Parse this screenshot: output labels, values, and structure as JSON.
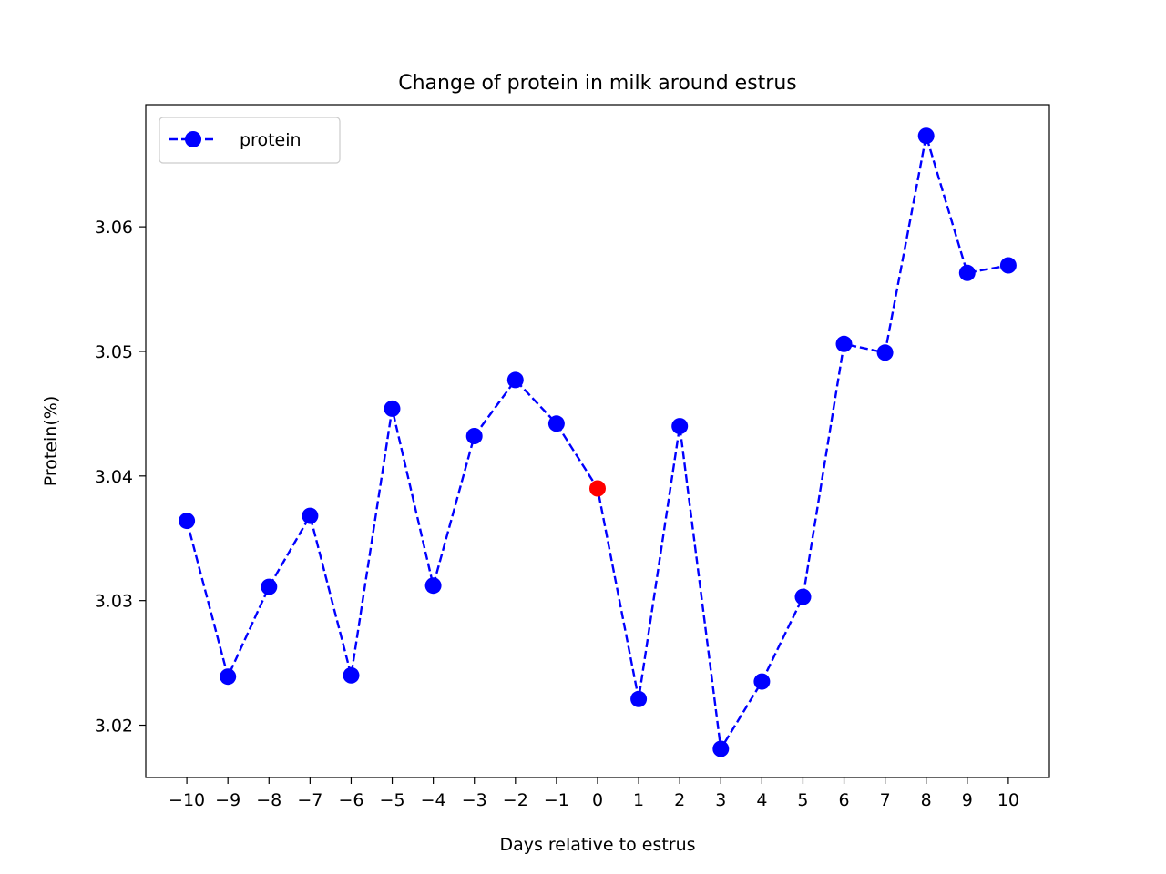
{
  "chart_data": {
    "type": "line",
    "title": "Change of protein in milk around estrus",
    "xlabel": "Days relative to estrus",
    "ylabel": "Protein(%)",
    "x": [
      -10,
      -9,
      -8,
      -7,
      -6,
      -5,
      -4,
      -3,
      -2,
      -1,
      0,
      1,
      2,
      3,
      4,
      5,
      6,
      7,
      8,
      9,
      10
    ],
    "xlim": [
      -11,
      11
    ],
    "ylim": [
      3.0158,
      3.0698
    ],
    "xticks": [
      -10,
      -9,
      -8,
      -7,
      -6,
      -5,
      -4,
      -3,
      -2,
      -1,
      0,
      1,
      2,
      3,
      4,
      5,
      6,
      7,
      8,
      9,
      10
    ],
    "xtick_labels": [
      "−10",
      "−9",
      "−8",
      "−7",
      "−6",
      "−5",
      "−4",
      "−3",
      "−2",
      "−1",
      "0",
      "1",
      "2",
      "3",
      "4",
      "5",
      "6",
      "7",
      "8",
      "9",
      "10"
    ],
    "yticks": [
      3.02,
      3.03,
      3.04,
      3.05,
      3.06
    ],
    "ytick_labels": [
      "3.02",
      "3.03",
      "3.04",
      "3.05",
      "3.06"
    ],
    "grid": false,
    "legend_position": "top-left",
    "series": [
      {
        "name": "protein",
        "values": [
          3.0364,
          3.0239,
          3.0311,
          3.0368,
          3.024,
          3.0454,
          3.0312,
          3.0432,
          3.0477,
          3.0442,
          3.039,
          3.0221,
          3.044,
          3.0181,
          3.0235,
          3.0303,
          3.0506,
          3.0499,
          3.0673,
          3.0563,
          3.0569
        ],
        "color": "#0000ff",
        "line_style": "dashed",
        "marker": "circle"
      }
    ],
    "highlight": {
      "x": 0,
      "value": 3.039,
      "color": "#ff0000"
    }
  }
}
